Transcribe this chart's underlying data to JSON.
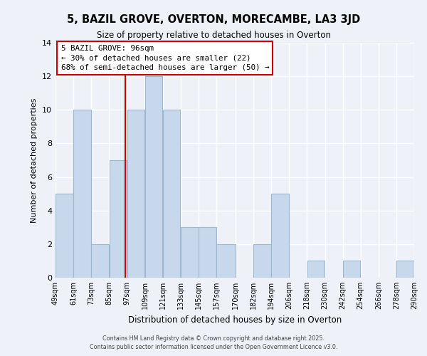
{
  "title": "5, BAZIL GROVE, OVERTON, MORECAMBE, LA3 3JD",
  "subtitle": "Size of property relative to detached houses in Overton",
  "xlabel": "Distribution of detached houses by size in Overton",
  "ylabel": "Number of detached properties",
  "bar_color": "#c8d8ec",
  "bar_edge_color": "#9ab8d0",
  "bin_labels": [
    "49sqm",
    "61sqm",
    "73sqm",
    "85sqm",
    "97sqm",
    "109sqm",
    "121sqm",
    "133sqm",
    "145sqm",
    "157sqm",
    "170sqm",
    "182sqm",
    "194sqm",
    "206sqm",
    "218sqm",
    "230sqm",
    "242sqm",
    "254sqm",
    "266sqm",
    "278sqm",
    "290sqm"
  ],
  "bin_edges": [
    49,
    61,
    73,
    85,
    97,
    109,
    121,
    133,
    145,
    157,
    170,
    182,
    194,
    206,
    218,
    230,
    242,
    254,
    266,
    278,
    290
  ],
  "counts": [
    5,
    10,
    2,
    7,
    10,
    12,
    10,
    3,
    3,
    2,
    0,
    2,
    5,
    0,
    1,
    0,
    1,
    0,
    0,
    1
  ],
  "property_value": 96,
  "annotation_title": "5 BAZIL GROVE: 96sqm",
  "annotation_line1": "← 30% of detached houses are smaller (22)",
  "annotation_line2": "68% of semi-detached houses are larger (50) →",
  "vline_color": "#cc0000",
  "annotation_box_color": "#ffffff",
  "annotation_box_edge": "#cc0000",
  "ylim": [
    0,
    14
  ],
  "yticks": [
    0,
    2,
    4,
    6,
    8,
    10,
    12,
    14
  ],
  "background_color": "#eef2f8",
  "footer_line1": "Contains HM Land Registry data © Crown copyright and database right 2025.",
  "footer_line2": "Contains public sector information licensed under the Open Government Licence v3.0."
}
